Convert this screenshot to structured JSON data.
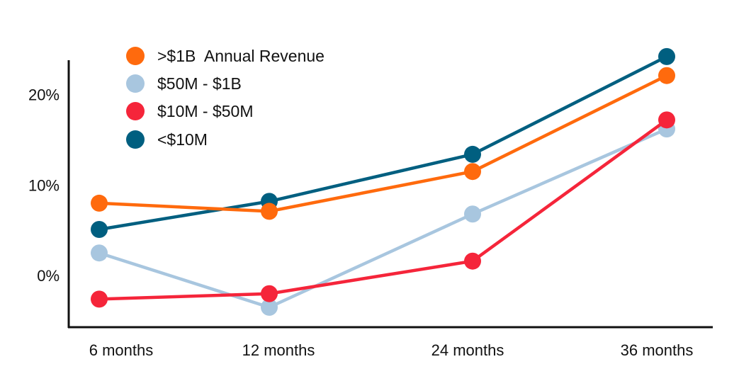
{
  "chart_data": {
    "type": "line",
    "title": "",
    "xlabel": "",
    "ylabel": "",
    "categories": [
      "6 months",
      "12 months",
      "24 months",
      "36 months"
    ],
    "x_positions": [
      6,
      12,
      24,
      36
    ],
    "yticks": [
      0,
      10,
      20
    ],
    "ytick_labels": [
      "0%",
      "10%",
      "20%"
    ],
    "ylim": [
      -5.7,
      23.8
    ],
    "grid": false,
    "legend_placement": "top-left",
    "series": [
      {
        "name": ">$1B  Annual Revenue",
        "color": "#FF6A0D",
        "values": [
          8.0,
          7.1,
          11.5,
          22.1
        ]
      },
      {
        "name": "$50M - $1B",
        "color": "#A8C6DF",
        "values": [
          2.5,
          -3.5,
          6.8,
          16.2
        ]
      },
      {
        "name": "$10M - $50M",
        "color": "#F5253A",
        "values": [
          -2.6,
          -2.0,
          1.6,
          17.2
        ]
      },
      {
        "name": "<$10M",
        "color": "#005F80",
        "values": [
          5.1,
          8.2,
          13.4,
          24.2
        ]
      }
    ],
    "draw_order": [
      3,
      0,
      1,
      2
    ]
  }
}
